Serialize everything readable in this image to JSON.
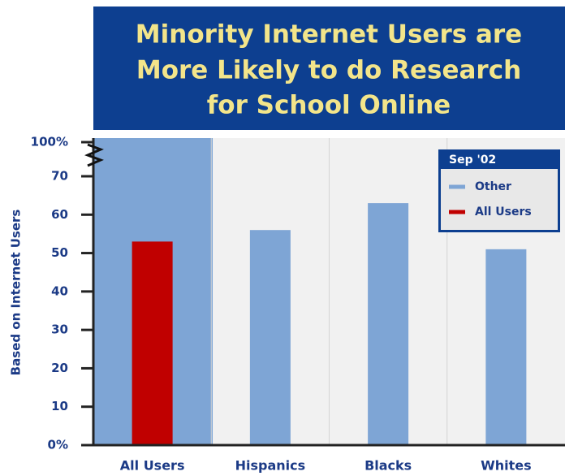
{
  "chart_data": {
    "type": "bar",
    "title_lines": [
      "Minority Internet Users are",
      "More Likely to do Research",
      "for School Online"
    ],
    "y_label": "Based on Internet Users",
    "categories": [
      "All Users",
      "Hispanics",
      "Blacks",
      "Whites"
    ],
    "series": [
      {
        "name": "Other",
        "color": "#7ea5d5",
        "values": [
          null,
          56,
          63,
          51
        ]
      },
      {
        "name": "All Users",
        "color": "#c00000",
        "values": [
          53,
          null,
          null,
          null
        ]
      }
    ],
    "legend_title": "Sep '02",
    "legend_position": "upper right",
    "ylim": [
      0,
      100
    ],
    "axis_break": [
      70,
      100
    ],
    "yticks": [
      {
        "value": 0,
        "label": "0%"
      },
      10,
      20,
      30,
      40,
      50,
      60,
      70,
      {
        "value": 100,
        "label": "100%"
      }
    ],
    "grid": true
  }
}
